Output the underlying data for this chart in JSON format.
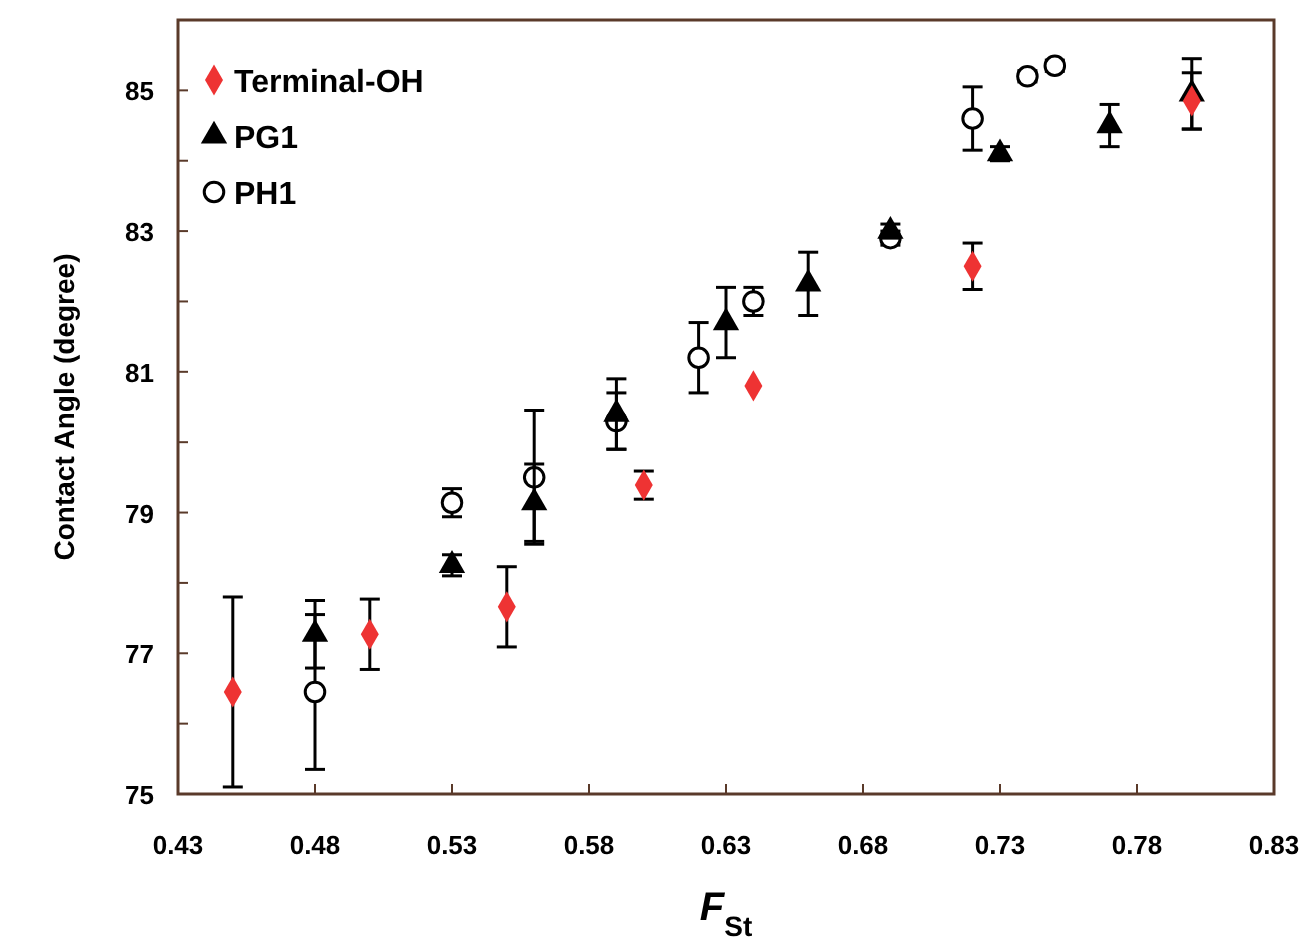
{
  "chart_data": {
    "type": "scatter",
    "xlabel": "F$_{St}$",
    "ylabel": "Contact Angle (degree)",
    "xlim": [
      0.43,
      0.83
    ],
    "ylim": [
      75,
      86
    ],
    "xticks": [
      0.43,
      0.48,
      0.53,
      0.58,
      0.63,
      0.68,
      0.73,
      0.78,
      0.83
    ],
    "yticks": [
      75,
      {
        "value": 76,
        "label": null
      },
      77,
      {
        "value": 78,
        "label": null
      },
      79,
      {
        "value": 80,
        "label": null
      },
      81,
      {
        "value": 82,
        "label": null
      },
      83,
      {
        "value": 84,
        "label": null
      },
      85
    ],
    "grid": false,
    "legend": "top left",
    "series": [
      {
        "name": "Terminal-OH",
        "color": "#ee3333",
        "marker": "diamond",
        "x": [
          0.45,
          0.5,
          0.55,
          0.6,
          0.64,
          0.72,
          0.8
        ],
        "values": [
          76.45,
          77.27,
          77.66,
          79.39,
          80.8,
          82.5,
          84.85
        ],
        "errors": [
          1.35,
          0.5,
          0.57,
          0.2,
          null,
          0.33,
          0.4
        ]
      },
      {
        "name": "PG1",
        "color": "#000000",
        "marker": "triangle",
        "x": [
          0.48,
          0.53,
          0.56,
          0.59,
          0.63,
          0.66,
          0.69,
          0.73,
          0.77,
          0.8
        ],
        "values": [
          77.27,
          78.25,
          79.14,
          80.4,
          81.7,
          82.25,
          83.0,
          84.1,
          84.5,
          84.95
        ],
        "errors": [
          0.48,
          0.15,
          0.55,
          0.5,
          0.5,
          0.45,
          0.1,
          0.1,
          0.3,
          0.5
        ]
      },
      {
        "name": "PH1",
        "color": "#000000",
        "marker": "circle",
        "x": [
          0.48,
          0.53,
          0.56,
          0.59,
          0.62,
          0.64,
          0.69,
          0.72,
          0.74,
          0.75
        ],
        "values": [
          76.45,
          79.14,
          79.5,
          80.3,
          81.2,
          82.0,
          82.9,
          84.6,
          85.2,
          85.35
        ],
        "errors": [
          1.1,
          0.2,
          0.95,
          0.4,
          0.5,
          0.2,
          0.1,
          0.45,
          0.08,
          0.08
        ]
      }
    ]
  }
}
